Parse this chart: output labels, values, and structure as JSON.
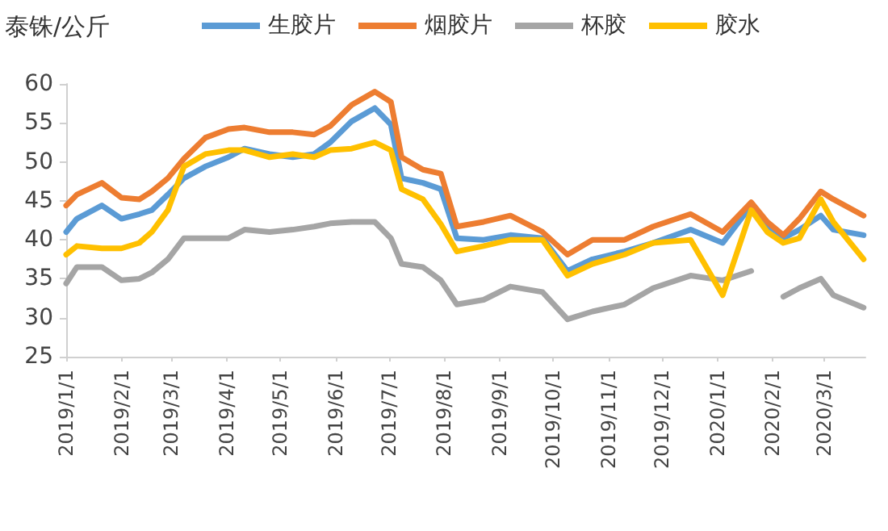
{
  "chart_data": {
    "type": "line",
    "ylabel": "泰铢/公斤",
    "x": [
      "2019-01-01",
      "2019-01-07",
      "2019-01-21",
      "2019-02-01",
      "2019-02-11",
      "2019-02-18",
      "2019-02-27",
      "2019-03-08",
      "2019-03-20",
      "2019-04-02",
      "2019-04-11",
      "2019-04-25",
      "2019-05-08",
      "2019-05-20",
      "2019-05-29",
      "2019-06-10",
      "2019-06-23",
      "2019-07-02",
      "2019-07-08",
      "2019-07-20",
      "2019-07-30",
      "2019-08-08",
      "2019-08-23",
      "2019-09-07",
      "2019-09-25",
      "2019-10-09",
      "2019-10-23",
      "2019-11-10",
      "2019-11-26",
      "2019-12-17",
      "2020-01-04",
      "2020-01-20",
      "2020-01-29",
      "2020-02-07",
      "2020-02-16",
      "2020-02-28",
      "2020-03-06",
      "2020-03-23"
    ],
    "series": [
      {
        "name": "生胶片",
        "color": "#5b9bd5",
        "values": [
          41.0,
          42.7,
          44.4,
          42.7,
          43.3,
          43.8,
          45.8,
          47.9,
          49.4,
          50.6,
          51.7,
          51.0,
          50.6,
          51.0,
          52.5,
          55.2,
          56.9,
          54.8,
          47.9,
          47.3,
          46.5,
          40.2,
          40.0,
          40.6,
          40.2,
          36.0,
          37.5,
          38.5,
          39.6,
          41.3,
          39.6,
          44.4,
          41.7,
          40.2,
          41.3,
          43.1,
          41.3,
          40.6
        ]
      },
      {
        "name": "烟胶片",
        "color": "#ed7d31",
        "values": [
          44.4,
          45.8,
          47.3,
          45.4,
          45.2,
          46.2,
          47.9,
          50.4,
          53.1,
          54.2,
          54.4,
          53.8,
          53.8,
          53.5,
          54.6,
          57.3,
          59.0,
          57.7,
          50.6,
          49.0,
          48.5,
          41.7,
          42.3,
          43.1,
          41.0,
          38.1,
          40.0,
          40.0,
          41.7,
          43.3,
          41.0,
          44.8,
          42.3,
          40.6,
          42.7,
          46.2,
          45.2,
          43.1
        ]
      },
      {
        "name": "杯胶",
        "color": "#a5a5a5",
        "values": [
          34.4,
          36.5,
          36.5,
          34.8,
          35.0,
          35.8,
          37.5,
          40.2,
          40.2,
          40.2,
          41.3,
          41.0,
          41.3,
          41.7,
          42.1,
          42.3,
          42.3,
          40.2,
          36.9,
          36.5,
          34.8,
          31.7,
          32.3,
          34.0,
          33.3,
          29.8,
          30.8,
          31.7,
          33.8,
          35.4,
          34.8,
          36.0,
          null,
          32.7,
          33.8,
          35.0,
          32.9,
          31.3
        ]
      },
      {
        "name": "胶水",
        "color": "#ffc000",
        "values": [
          38.1,
          39.2,
          38.9,
          38.9,
          39.6,
          41.0,
          43.8,
          49.4,
          51.0,
          51.5,
          51.5,
          50.6,
          51.0,
          50.6,
          51.5,
          51.7,
          52.5,
          51.5,
          46.5,
          45.2,
          42.0,
          38.5,
          39.2,
          40.0,
          40.0,
          35.4,
          36.9,
          38.1,
          39.6,
          40.0,
          32.9,
          43.8,
          41.0,
          39.6,
          40.2,
          45.2,
          42.3,
          37.5
        ]
      }
    ],
    "xlim": [
      "2019-01-01",
      "2020-03-24"
    ],
    "xticks": [
      {
        "value": "2019-01-01",
        "label": "2019/1/1"
      },
      {
        "value": "2019-02-01",
        "label": "2019/2/1"
      },
      {
        "value": "2019-03-01",
        "label": "2019/3/1"
      },
      {
        "value": "2019-04-01",
        "label": "2019/4/1"
      },
      {
        "value": "2019-05-01",
        "label": "2019/5/1"
      },
      {
        "value": "2019-06-01",
        "label": "2019/6/1"
      },
      {
        "value": "2019-07-01",
        "label": "2019/7/1"
      },
      {
        "value": "2019-08-01",
        "label": "2019/8/1"
      },
      {
        "value": "2019-09-01",
        "label": "2019/9/1"
      },
      {
        "value": "2019-10-01",
        "label": "2019/10/1"
      },
      {
        "value": "2019-11-01",
        "label": "2019/11/1"
      },
      {
        "value": "2019-12-01",
        "label": "2019/12/1"
      },
      {
        "value": "2020-01-01",
        "label": "2020/1/1"
      },
      {
        "value": "2020-02-01",
        "label": "2020/2/1"
      },
      {
        "value": "2020-03-01",
        "label": "2020/3/1"
      }
    ],
    "ylim": [
      25,
      60
    ],
    "yticks": [
      25,
      30,
      35,
      40,
      45,
      50,
      55,
      60
    ],
    "grid": false,
    "legend": "top",
    "marker": "none",
    "line_style": "solid"
  }
}
